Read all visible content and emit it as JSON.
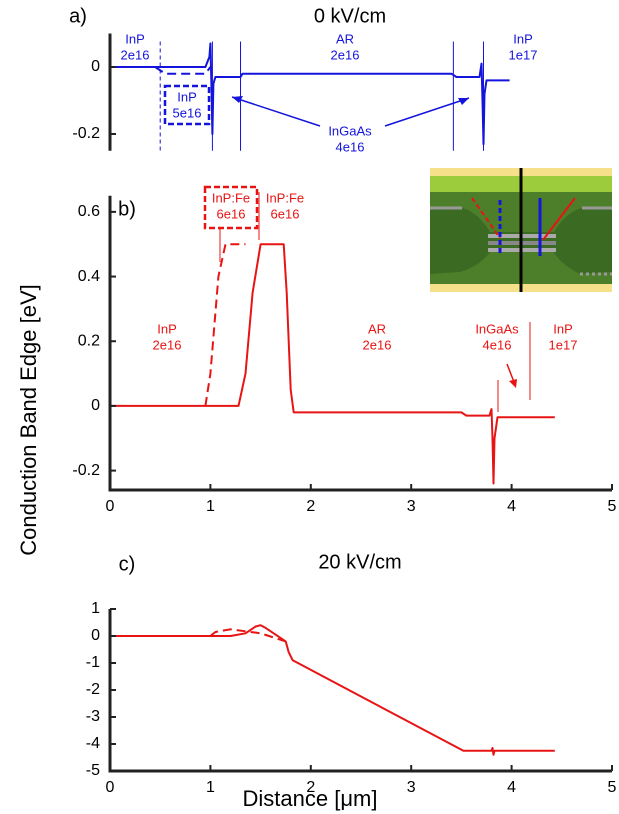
{
  "figure": {
    "ylabel": "Conduction Band Edge [eV]"
  },
  "chart_data": [
    {
      "type": "line",
      "panel_label": "a)",
      "title": "0 kV/cm",
      "xlim": [
        0,
        5
      ],
      "ylim": [
        -0.25,
        0.1
      ],
      "yticks": [
        0,
        -0.2
      ],
      "vlines": [
        0.5,
        1.02,
        1.3,
        3.42,
        3.72
      ],
      "annotations": [
        [
          "InP",
          "2e16"
        ],
        [
          "InP",
          "5e16"
        ],
        [
          "AR",
          "2e16"
        ],
        [
          "InP",
          "1e17"
        ],
        [
          "InGaAs",
          "4e16"
        ]
      ],
      "series": [
        {
          "color": "#1414dc",
          "dash": false,
          "x": [
            0,
            0.95,
            0.99,
            1.0,
            1.01,
            1.02,
            1.03,
            1.05,
            1.3,
            1.32,
            3.4,
            3.45,
            3.5,
            3.68,
            3.7,
            3.71,
            3.72,
            3.73,
            3.75,
            3.98
          ],
          "values": [
            0,
            0,
            0.03,
            0.07,
            -0.05,
            -0.2,
            -0.05,
            -0.03,
            -0.03,
            -0.02,
            -0.02,
            -0.03,
            -0.03,
            -0.03,
            0.01,
            -0.1,
            -0.23,
            -0.08,
            -0.04,
            -0.04
          ]
        },
        {
          "color": "#1414dc",
          "dash": true,
          "x": [
            0.45,
            0.55,
            0.95,
            1.0
          ],
          "values": [
            0,
            -0.02,
            -0.02,
            0
          ]
        }
      ]
    },
    {
      "type": "line",
      "panel_label": "b)",
      "xlim": [
        0,
        5
      ],
      "ylim": [
        -0.26,
        0.65
      ],
      "xticks": [
        0,
        1,
        2,
        3,
        4,
        5
      ],
      "yticks": [
        0.6,
        0.4,
        0.2,
        0,
        -0.2
      ],
      "annotations": [
        [
          "InP:Fe",
          "6e16"
        ],
        [
          "InP:Fe",
          "6e16"
        ],
        [
          "InP",
          "2e16"
        ],
        [
          "AR",
          "2e16"
        ],
        [
          "InGaAs",
          "4e16"
        ],
        [
          "InP",
          "1e17"
        ]
      ],
      "series": [
        {
          "color": "#e81414",
          "dash": false,
          "x": [
            0,
            1.28,
            1.35,
            1.42,
            1.5,
            1.73,
            1.76,
            1.8,
            1.83,
            3.5,
            3.55,
            3.78,
            3.8,
            3.81,
            3.82,
            3.83,
            3.86,
            4.43
          ],
          "values": [
            0,
            0,
            0.1,
            0.35,
            0.5,
            0.5,
            0.35,
            0.05,
            -0.02,
            -0.02,
            -0.03,
            -0.03,
            -0.01,
            -0.1,
            -0.24,
            -0.1,
            -0.035,
            -0.035
          ]
        },
        {
          "color": "#e81414",
          "dash": true,
          "x": [
            0.95,
            1.0,
            1.08,
            1.15,
            1.35
          ],
          "values": [
            0,
            0.1,
            0.4,
            0.5,
            0.5
          ]
        }
      ]
    },
    {
      "type": "line",
      "panel_label": "c)",
      "title": "20 kV/cm",
      "xlabel": "Distance [μm]",
      "xlim": [
        0,
        5
      ],
      "ylim": [
        -5,
        1
      ],
      "xticks": [
        0,
        1,
        2,
        3,
        4,
        5
      ],
      "yticks": [
        1,
        0,
        -1,
        -2,
        -3,
        -4,
        -5
      ],
      "series": [
        {
          "color": "#e81414",
          "dash": false,
          "x": [
            0,
            1.2,
            1.35,
            1.45,
            1.5,
            1.55,
            1.75,
            1.78,
            1.82,
            3.52,
            3.8,
            3.81,
            3.82,
            3.83,
            4.43
          ],
          "values": [
            0,
            0,
            0.1,
            0.35,
            0.4,
            0.3,
            -0.2,
            -0.6,
            -0.9,
            -4.25,
            -4.25,
            -4.15,
            -4.4,
            -4.25,
            -4.25
          ]
        },
        {
          "color": "#e81414",
          "dash": true,
          "x": [
            1.0,
            1.05,
            1.2,
            1.5,
            1.75
          ],
          "values": [
            0,
            0.15,
            0.25,
            0.1,
            -0.2
          ]
        }
      ]
    }
  ]
}
